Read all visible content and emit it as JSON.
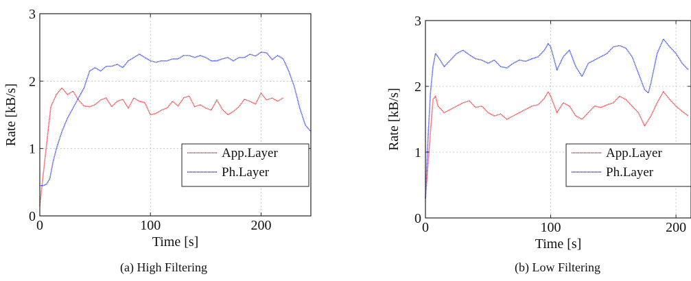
{
  "figures": [
    {
      "caption": "(a) High Filtering",
      "chart_data": {
        "type": "line",
        "xlabel": "Time [s]",
        "ylabel": "Rate [kB/s]",
        "xlim": [
          0,
          245
        ],
        "ylim": [
          0,
          3
        ],
        "x_ticks": [
          "0",
          "100",
          "200"
        ],
        "y_ticks": [
          "0",
          "1",
          "2",
          "3"
        ],
        "grid": true,
        "legend_position": "lower-right",
        "series": [
          {
            "name": "App.Layer",
            "color": "#e8383d",
            "x": [
              0,
              5,
              10,
              15,
              20,
              25,
              30,
              35,
              40,
              45,
              50,
              55,
              60,
              65,
              70,
              75,
              80,
              85,
              90,
              95,
              100,
              105,
              110,
              115,
              120,
              125,
              130,
              135,
              140,
              145,
              150,
              155,
              160,
              165,
              170,
              175,
              180,
              185,
              190,
              195,
              200,
              205,
              210,
              215,
              220
            ],
            "values": [
              0.15,
              0.9,
              1.62,
              1.8,
              1.9,
              1.8,
              1.85,
              1.72,
              1.63,
              1.62,
              1.65,
              1.72,
              1.75,
              1.62,
              1.7,
              1.73,
              1.6,
              1.75,
              1.7,
              1.68,
              1.5,
              1.52,
              1.57,
              1.6,
              1.7,
              1.63,
              1.75,
              1.78,
              1.62,
              1.65,
              1.6,
              1.57,
              1.72,
              1.58,
              1.5,
              1.55,
              1.62,
              1.73,
              1.7,
              1.66,
              1.82,
              1.72,
              1.75,
              1.7,
              1.75
            ]
          },
          {
            "name": "Ph.Layer",
            "color": "#3340e0",
            "x": [
              0,
              3,
              6,
              9,
              12,
              15,
              20,
              25,
              30,
              35,
              40,
              45,
              50,
              55,
              60,
              65,
              70,
              75,
              80,
              85,
              90,
              95,
              100,
              105,
              110,
              115,
              120,
              125,
              130,
              135,
              140,
              145,
              150,
              155,
              160,
              165,
              170,
              175,
              180,
              185,
              190,
              195,
              200,
              205,
              210,
              215,
              220,
              225,
              230,
              235,
              240,
              245
            ],
            "values": [
              0.45,
              0.45,
              0.47,
              0.55,
              0.8,
              1.0,
              1.25,
              1.45,
              1.6,
              1.75,
              1.9,
              2.15,
              2.2,
              2.15,
              2.22,
              2.22,
              2.25,
              2.2,
              2.3,
              2.35,
              2.4,
              2.35,
              2.3,
              2.28,
              2.3,
              2.3,
              2.33,
              2.33,
              2.38,
              2.38,
              2.35,
              2.38,
              2.35,
              2.3,
              2.3,
              2.33,
              2.35,
              2.3,
              2.35,
              2.35,
              2.4,
              2.37,
              2.43,
              2.42,
              2.32,
              2.38,
              2.33,
              2.15,
              1.92,
              1.6,
              1.35,
              1.25
            ]
          }
        ]
      }
    },
    {
      "caption": "(b) Low Filtering",
      "chart_data": {
        "type": "line",
        "xlabel": "Time [s]",
        "ylabel": "Rate [kB/s]",
        "xlim": [
          0,
          212
        ],
        "ylim": [
          0,
          3
        ],
        "x_ticks": [
          "0",
          "100",
          "200"
        ],
        "y_ticks": [
          "0",
          "1",
          "2",
          "3"
        ],
        "grid": true,
        "legend_position": "lower-right",
        "series": [
          {
            "name": "App.Layer",
            "color": "#e8383d",
            "x": [
              0,
              2,
              4,
              6,
              8,
              10,
              15,
              20,
              25,
              30,
              35,
              40,
              45,
              50,
              55,
              60,
              65,
              70,
              75,
              80,
              85,
              90,
              95,
              98,
              100,
              105,
              110,
              115,
              120,
              125,
              130,
              135,
              140,
              145,
              150,
              155,
              160,
              165,
              170,
              175,
              180,
              185,
              190,
              195,
              200,
              205,
              210
            ],
            "values": [
              0.3,
              0.8,
              1.3,
              1.8,
              1.85,
              1.7,
              1.6,
              1.65,
              1.7,
              1.75,
              1.78,
              1.68,
              1.7,
              1.6,
              1.55,
              1.58,
              1.5,
              1.55,
              1.6,
              1.65,
              1.7,
              1.72,
              1.82,
              1.92,
              1.85,
              1.6,
              1.75,
              1.7,
              1.55,
              1.5,
              1.6,
              1.7,
              1.68,
              1.72,
              1.75,
              1.85,
              1.8,
              1.7,
              1.6,
              1.4,
              1.55,
              1.75,
              1.92,
              1.8,
              1.7,
              1.62,
              1.55
            ]
          },
          {
            "name": "Ph.Layer",
            "color": "#3340e0",
            "x": [
              0,
              2,
              4,
              6,
              8,
              10,
              15,
              20,
              25,
              30,
              35,
              40,
              45,
              50,
              55,
              60,
              65,
              70,
              75,
              80,
              85,
              90,
              95,
              98,
              100,
              105,
              110,
              115,
              120,
              125,
              130,
              135,
              140,
              145,
              150,
              155,
              160,
              165,
              170,
              175,
              178,
              180,
              185,
              190,
              195,
              200,
              205,
              210
            ],
            "values": [
              0.3,
              1.2,
              1.9,
              2.3,
              2.5,
              2.45,
              2.3,
              2.4,
              2.5,
              2.55,
              2.48,
              2.42,
              2.4,
              2.35,
              2.4,
              2.3,
              2.28,
              2.35,
              2.4,
              2.38,
              2.42,
              2.45,
              2.55,
              2.65,
              2.6,
              2.25,
              2.45,
              2.55,
              2.3,
              2.15,
              2.35,
              2.4,
              2.45,
              2.5,
              2.6,
              2.62,
              2.58,
              2.45,
              2.2,
              1.95,
              1.9,
              2.05,
              2.5,
              2.72,
              2.6,
              2.5,
              2.35,
              2.25
            ]
          }
        ]
      }
    }
  ]
}
